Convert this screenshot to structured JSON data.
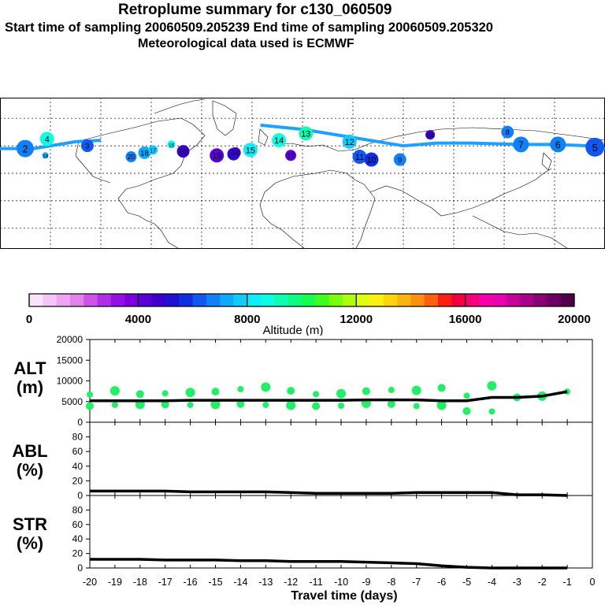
{
  "header": {
    "title": "Retroplume summary for c130_060509",
    "sampling_line": "Start time of sampling 20060509.205239     End time of sampling 20060509.205320",
    "met_line": "Meteorological data used is ECMWF"
  },
  "colorbar": {
    "label": "Altitude (m)",
    "ticks": [
      "0",
      "4000",
      "8000",
      "12000",
      "16000",
      "20000"
    ],
    "colors": [
      "#fbe3fb",
      "#f5c5f5",
      "#eea6f0",
      "#e282ea",
      "#cc55e6",
      "#b02ee6",
      "#9411e6",
      "#7a00e0",
      "#5a00d6",
      "#3b00cc",
      "#2010d4",
      "#1030e0",
      "#1058f0",
      "#1080f8",
      "#10a8fc",
      "#10ccfc",
      "#10ecfa",
      "#10fce0",
      "#10fcb0",
      "#10fc80",
      "#18fc50",
      "#40fc20",
      "#78fc10",
      "#b0fc10",
      "#e0fc10",
      "#fcf010",
      "#fcd410",
      "#fcb410",
      "#fc9010",
      "#fc6010",
      "#fc2010",
      "#f0003c",
      "#f40078",
      "#f800a8",
      "#e800b0",
      "#c8009a",
      "#a80088",
      "#880074",
      "#6c0060",
      "#500048"
    ]
  },
  "map": {
    "plume_color": "#1ea0ff",
    "day_labels": [
      {
        "t": "2",
        "lon": -165,
        "lat": 38,
        "alt": 6800,
        "r": 11
      },
      {
        "t": "20",
        "lon": -102,
        "lat": 32,
        "alt": 6800,
        "r": 7
      },
      {
        "t": "18",
        "lon": -94,
        "lat": 35,
        "alt": 7000,
        "r": 8
      },
      {
        "t": "17",
        "lon": -89,
        "lat": 37,
        "alt": 7800,
        "r": 6
      },
      {
        "t": "16",
        "lon": -78,
        "lat": 41,
        "alt": 8200,
        "r": 5
      },
      {
        "t": "19",
        "lon": -153,
        "lat": 33,
        "alt": 7200,
        "r": 4
      },
      {
        "t": "15",
        "lon": -31,
        "lat": 37,
        "alt": 8200,
        "r": 9
      },
      {
        "t": "14",
        "lon": -14,
        "lat": 44,
        "alt": 8800,
        "r": 9
      },
      {
        "t": "13",
        "lon": 2,
        "lat": 49,
        "alt": 9200,
        "r": 9
      },
      {
        "t": "12",
        "lon": 28,
        "lat": 43,
        "alt": 7800,
        "r": 9
      },
      {
        "t": "11",
        "lon": 34,
        "lat": 32,
        "alt": 6200,
        "r": 9
      },
      {
        "t": "10",
        "lon": 41,
        "lat": 30,
        "alt": 5600,
        "r": 9
      },
      {
        "t": "9",
        "lon": 58,
        "lat": 30,
        "alt": 6500,
        "r": 8
      },
      {
        "t": "8",
        "lon": 122,
        "lat": 50,
        "alt": 6800,
        "r": 8
      },
      {
        "t": "7",
        "lon": 130,
        "lat": 41,
        "alt": 6800,
        "r": 10
      },
      {
        "t": "6",
        "lon": 152,
        "lat": 41,
        "alt": 6600,
        "r": 10
      },
      {
        "t": "5",
        "lon": 174,
        "lat": 39,
        "alt": 6400,
        "r": 12
      },
      {
        "t": "4",
        "lon": -152,
        "lat": 45,
        "alt": 8500,
        "r": 9
      },
      {
        "t": "3",
        "lon": -128,
        "lat": 40,
        "alt": 6200,
        "r": 8
      },
      {
        "t": "20",
        "lon": -71,
        "lat": 36,
        "alt": 4500,
        "r": 8
      },
      {
        "t": "19",
        "lon": -51,
        "lat": 33,
        "alt": 4200,
        "r": 9
      },
      {
        "t": "18",
        "lon": -41,
        "lat": 34,
        "alt": 5200,
        "r": 8
      },
      {
        "t": "17",
        "lon": -7,
        "lat": 33,
        "alt": 4000,
        "r": 7
      },
      {
        "t": "16",
        "lon": 76,
        "lat": 48,
        "alt": 4800,
        "r": 6
      },
      {
        "t": "15",
        "lon": -40,
        "lat": 35,
        "alt": 4600,
        "r": 7
      }
    ]
  },
  "chart_data": [
    {
      "type": "line",
      "ylabel": "ALT\n(m)",
      "ylabel_lines": [
        "ALT",
        "(m)"
      ],
      "ylim": [
        0,
        20000
      ],
      "yticks": [
        "0",
        "5000",
        "10000",
        "15000",
        "20000"
      ],
      "x": [
        -20,
        -19,
        -18,
        -17,
        -16,
        -15,
        -14,
        -13,
        -12,
        -11,
        -10,
        -9,
        -8,
        -7,
        -6,
        -5,
        -4,
        -3,
        -2,
        -1
      ],
      "series": [
        {
          "name": "median altitude",
          "values": [
            5200,
            5200,
            5200,
            5200,
            5300,
            5300,
            5300,
            5300,
            5300,
            5300,
            5300,
            5400,
            5400,
            5400,
            5200,
            5200,
            6000,
            6000,
            6300,
            7400
          ]
        }
      ],
      "scatter": {
        "x": [
          -20,
          -20,
          -19,
          -19,
          -18,
          -18,
          -17,
          -17,
          -16,
          -16,
          -15,
          -15,
          -14,
          -14,
          -13,
          -13,
          -12,
          -12,
          -11,
          -11,
          -10,
          -10,
          -9,
          -9,
          -8,
          -8,
          -7,
          -7,
          -6,
          -6,
          -5,
          -5,
          -4,
          -4,
          -3,
          -2,
          -1
        ],
        "y": [
          6700,
          3900,
          7600,
          4200,
          6800,
          4300,
          7000,
          4300,
          7200,
          4200,
          7400,
          4300,
          8000,
          4400,
          8500,
          4200,
          7600,
          4100,
          6800,
          3900,
          6900,
          4000,
          7500,
          4600,
          7800,
          4400,
          7700,
          3900,
          8300,
          4100,
          6400,
          2700,
          8800,
          2600,
          6000,
          6300,
          7400
        ],
        "color": "#22ee66"
      }
    },
    {
      "type": "line",
      "ylabel": "ABL\n(%)",
      "ylabel_lines": [
        "ABL",
        "(%)"
      ],
      "ylim": [
        0,
        100
      ],
      "yticks": [
        "0",
        "20",
        "40",
        "60",
        "80"
      ],
      "x": [
        -20,
        -19,
        -18,
        -17,
        -16,
        -15,
        -14,
        -13,
        -12,
        -11,
        -10,
        -9,
        -8,
        -7,
        -6,
        -5,
        -4,
        -3,
        -2,
        -1
      ],
      "series": [
        {
          "name": "fraction in boundary layer",
          "values": [
            6,
            6,
            6,
            6,
            5,
            5,
            5,
            5,
            4,
            3,
            3,
            3,
            3,
            4,
            4,
            4,
            4,
            1,
            1,
            0
          ]
        }
      ]
    },
    {
      "type": "line",
      "ylabel": "STR\n(%)",
      "ylabel_lines": [
        "STR",
        "(%)"
      ],
      "ylim": [
        0,
        100
      ],
      "yticks": [
        "0",
        "20",
        "40",
        "60",
        "80"
      ],
      "x": [
        -20,
        -19,
        -18,
        -17,
        -16,
        -15,
        -14,
        -13,
        -12,
        -11,
        -10,
        -9,
        -8,
        -7,
        -6,
        -5,
        -4,
        -3,
        -2,
        -1
      ],
      "xticks": [
        "-20",
        "-19",
        "-18",
        "-17",
        "-16",
        "-15",
        "-14",
        "-13",
        "-12",
        "-11",
        "-10",
        "-9",
        "-8",
        "-7",
        "-6",
        "-5",
        "-4",
        "-3",
        "-2",
        "-1",
        "0"
      ],
      "xlabel": "Travel time (days)",
      "series": [
        {
          "name": "fraction in stratosphere",
          "values": [
            12,
            12,
            12,
            11,
            11,
            11,
            10,
            10,
            9,
            9,
            9,
            8,
            7,
            6,
            3,
            1,
            0,
            0,
            0,
            0
          ]
        }
      ]
    }
  ]
}
